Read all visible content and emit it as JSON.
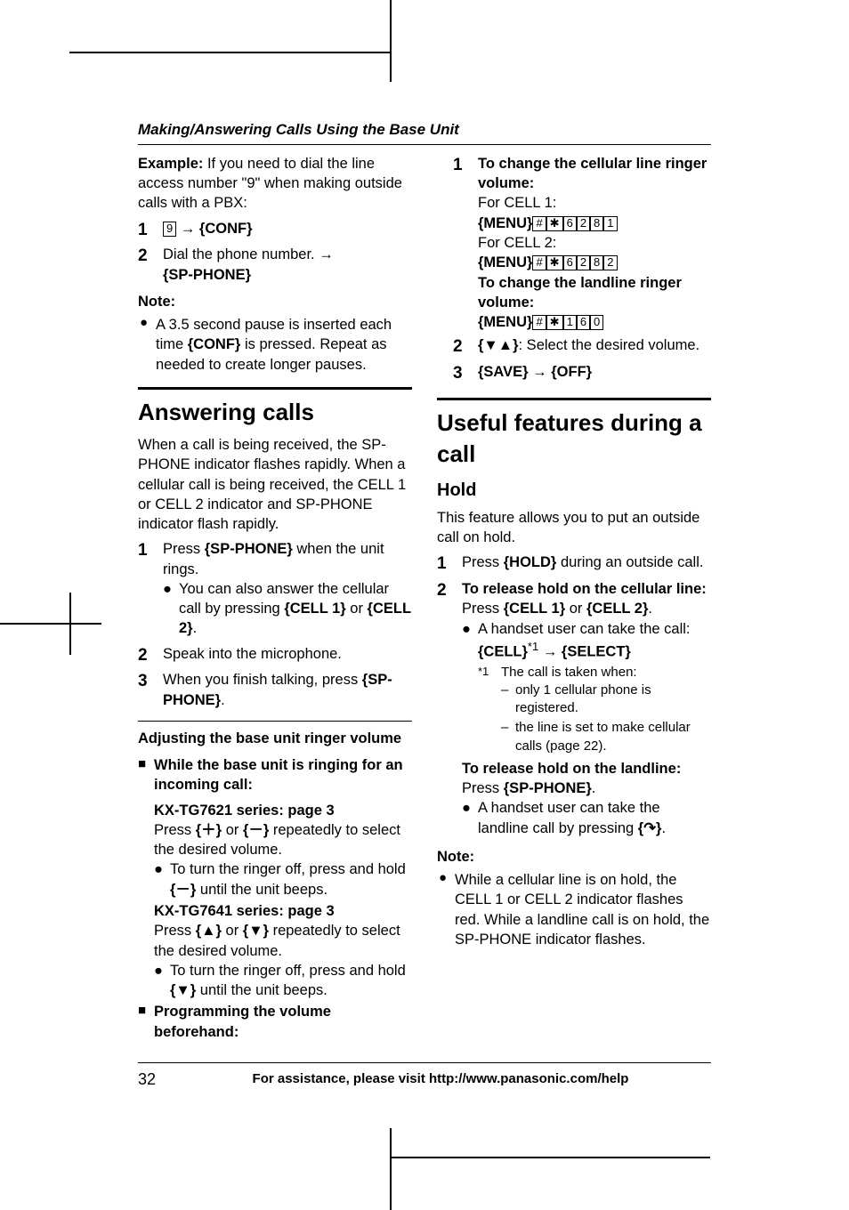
{
  "header": "Making/Answering Calls Using the Base Unit",
  "page_number": "32",
  "footer_text": "For assistance, please visit http://www.panasonic.com/help",
  "example": {
    "label": "Example:",
    "text": " If you need to dial the line access number \"9\" when making outside calls with a PBX:",
    "step1_key": "9",
    "step1_btn": "{CONF}",
    "step2_text": "Dial the phone number. ",
    "step2_btn": "{SP-PHONE}"
  },
  "note1": {
    "heading": "Note:",
    "text_a": "A 3.5 second pause is inserted each time ",
    "text_b": "{CONF}",
    "text_c": " is pressed. Repeat as needed to create longer pauses."
  },
  "answering": {
    "title": "Answering calls",
    "intro": "When a call is being received, the SP-PHONE indicator flashes rapidly. When a cellular call is being received, the CELL 1 or CELL 2 indicator and SP-PHONE indicator flash rapidly.",
    "s1a": "Press ",
    "s1b": "{SP-PHONE}",
    "s1c": " when the unit rings.",
    "s1_bullet_a": "You can also answer the cellular call by pressing ",
    "s1_bullet_b": "{CELL 1}",
    "s1_bullet_c": " or ",
    "s1_bullet_d": "{CELL 2}",
    "s1_bullet_e": ".",
    "s2": "Speak into the microphone.",
    "s3a": "When you finish talking, press ",
    "s3b": "{SP-PHONE}",
    "s3c": "."
  },
  "adjusting": {
    "heading": "Adjusting the base unit ringer volume",
    "blk1": "While the base unit is ringing for an incoming call:",
    "kx7621": "KX-TG7621 series: page 3",
    "kx7621_a": "Press ",
    "kx7621_b": "{＋}",
    "kx7621_c": " or ",
    "kx7621_d": "{－}",
    "kx7621_e": " repeatedly to select the desired volume.",
    "kx7621_bullet_a": "To turn the ringer off, press and hold ",
    "kx7621_bullet_b": "{－}",
    "kx7621_bullet_c": " until the unit beeps.",
    "kx7641": "KX-TG7641 series: page 3",
    "kx7641_a": "Press ",
    "kx7641_b": "{▲}",
    "kx7641_c": " or ",
    "kx7641_d": "{▼}",
    "kx7641_e": " repeatedly to select the desired volume.",
    "kx7641_bullet_a": "To turn the ringer off, press and hold ",
    "kx7641_bullet_b": "{▼}",
    "kx7641_bullet_c": " until the unit beeps."
  },
  "programming": {
    "blk": "Programming the volume beforehand:",
    "s1_head": "To change the cellular line ringer volume:",
    "cell1_label": "For CELL 1:",
    "menu_label": "{MENU}",
    "cell1_keys": [
      "#",
      "✱",
      "6",
      "2",
      "8",
      "1"
    ],
    "cell2_label": "For CELL 2:",
    "cell2_keys": [
      "#",
      "✱",
      "6",
      "2",
      "8",
      "2"
    ],
    "landline_head": "To change the landline ringer volume:",
    "landline_keys": [
      "#",
      "✱",
      "1",
      "6",
      "0"
    ],
    "s2_btn": "{▼▲}",
    "s2_text": ": Select the desired volume.",
    "s3_a": "{SAVE}",
    "s3_b": "{OFF}"
  },
  "useful": {
    "title": "Useful features during a call",
    "hold_title": "Hold",
    "hold_intro": "This feature allows you to put an outside call on hold.",
    "s1a": "Press ",
    "s1b": "{HOLD}",
    "s1c": " during an outside call.",
    "s2_head": "To release hold on the cellular line:",
    "s2_a": "Press ",
    "s2_b": "{CELL 1}",
    "s2_c": " or ",
    "s2_d": "{CELL 2}",
    "s2_e": ".",
    "s2_bullet": "A handset user can take the call:",
    "s2_bullet_b1": "{CELL}",
    "s2_bullet_b2": "{SELECT}",
    "fn_mark": "*1",
    "fn_text": "The call is taken when:",
    "fn_d1": "only 1 cellular phone is registered.",
    "fn_d2": "the line is set to make cellular calls (page 22).",
    "s2_land_head": "To release hold on the landline:",
    "s2_land_a": "Press ",
    "s2_land_b": "{SP-PHONE}",
    "s2_land_c": ".",
    "s2_land_bullet_a": "A handset user can take the landline call by pressing ",
    "s2_land_bullet_b": "{↷}",
    "s2_land_bullet_c": "."
  },
  "note2": {
    "heading": "Note:",
    "text": "While a cellular line is on hold, the CELL 1 or CELL 2 indicator flashes red. While a landline call is on hold, the SP-PHONE indicator flashes."
  }
}
